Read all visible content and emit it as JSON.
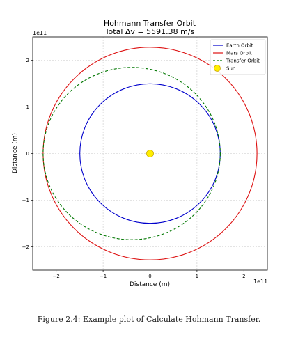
{
  "chart_data": {
    "type": "line",
    "title": "Hohmann Transfer Orbit",
    "subtitle": "Total Δv = 5591.38 m/s",
    "xlabel": "Distance (m)",
    "ylabel": "Distance (m)",
    "x_offset_label": "1e11",
    "y_offset_label": "1e11",
    "xlim": [
      -2.5,
      2.5
    ],
    "ylim": [
      -2.5,
      2.5
    ],
    "xticks": [
      -2,
      -1,
      0,
      1,
      2
    ],
    "yticks": [
      -2,
      -1,
      0,
      1,
      2
    ],
    "xtick_labels": [
      "−2",
      "−1",
      "0",
      "1",
      "2"
    ],
    "ytick_labels": [
      "−2",
      "−1",
      "0",
      "1",
      "2"
    ],
    "grid": true,
    "legend_position": "top-right",
    "series": [
      {
        "name": "Earth Orbit",
        "shape": "circle",
        "cx": 0,
        "cy": 0,
        "a": 1.496,
        "b": 1.496,
        "color": "#0000cc",
        "style": "solid"
      },
      {
        "name": "Mars Orbit",
        "shape": "circle",
        "cx": 0,
        "cy": 0,
        "a": 2.279,
        "b": 2.279,
        "color": "#dd1111",
        "style": "solid"
      },
      {
        "name": "Transfer Orbit",
        "shape": "ellipse",
        "cx": -0.3915,
        "cy": 0,
        "a": 1.8875,
        "b": 1.8465,
        "color": "#007700",
        "style": "dashed"
      },
      {
        "name": "Sun",
        "shape": "point",
        "x": 0,
        "y": 0,
        "color": "#ffee00",
        "edge": "#c9a800"
      }
    ]
  },
  "caption": "Figure 2.4: Example plot of Calculate Hohmann Transfer."
}
